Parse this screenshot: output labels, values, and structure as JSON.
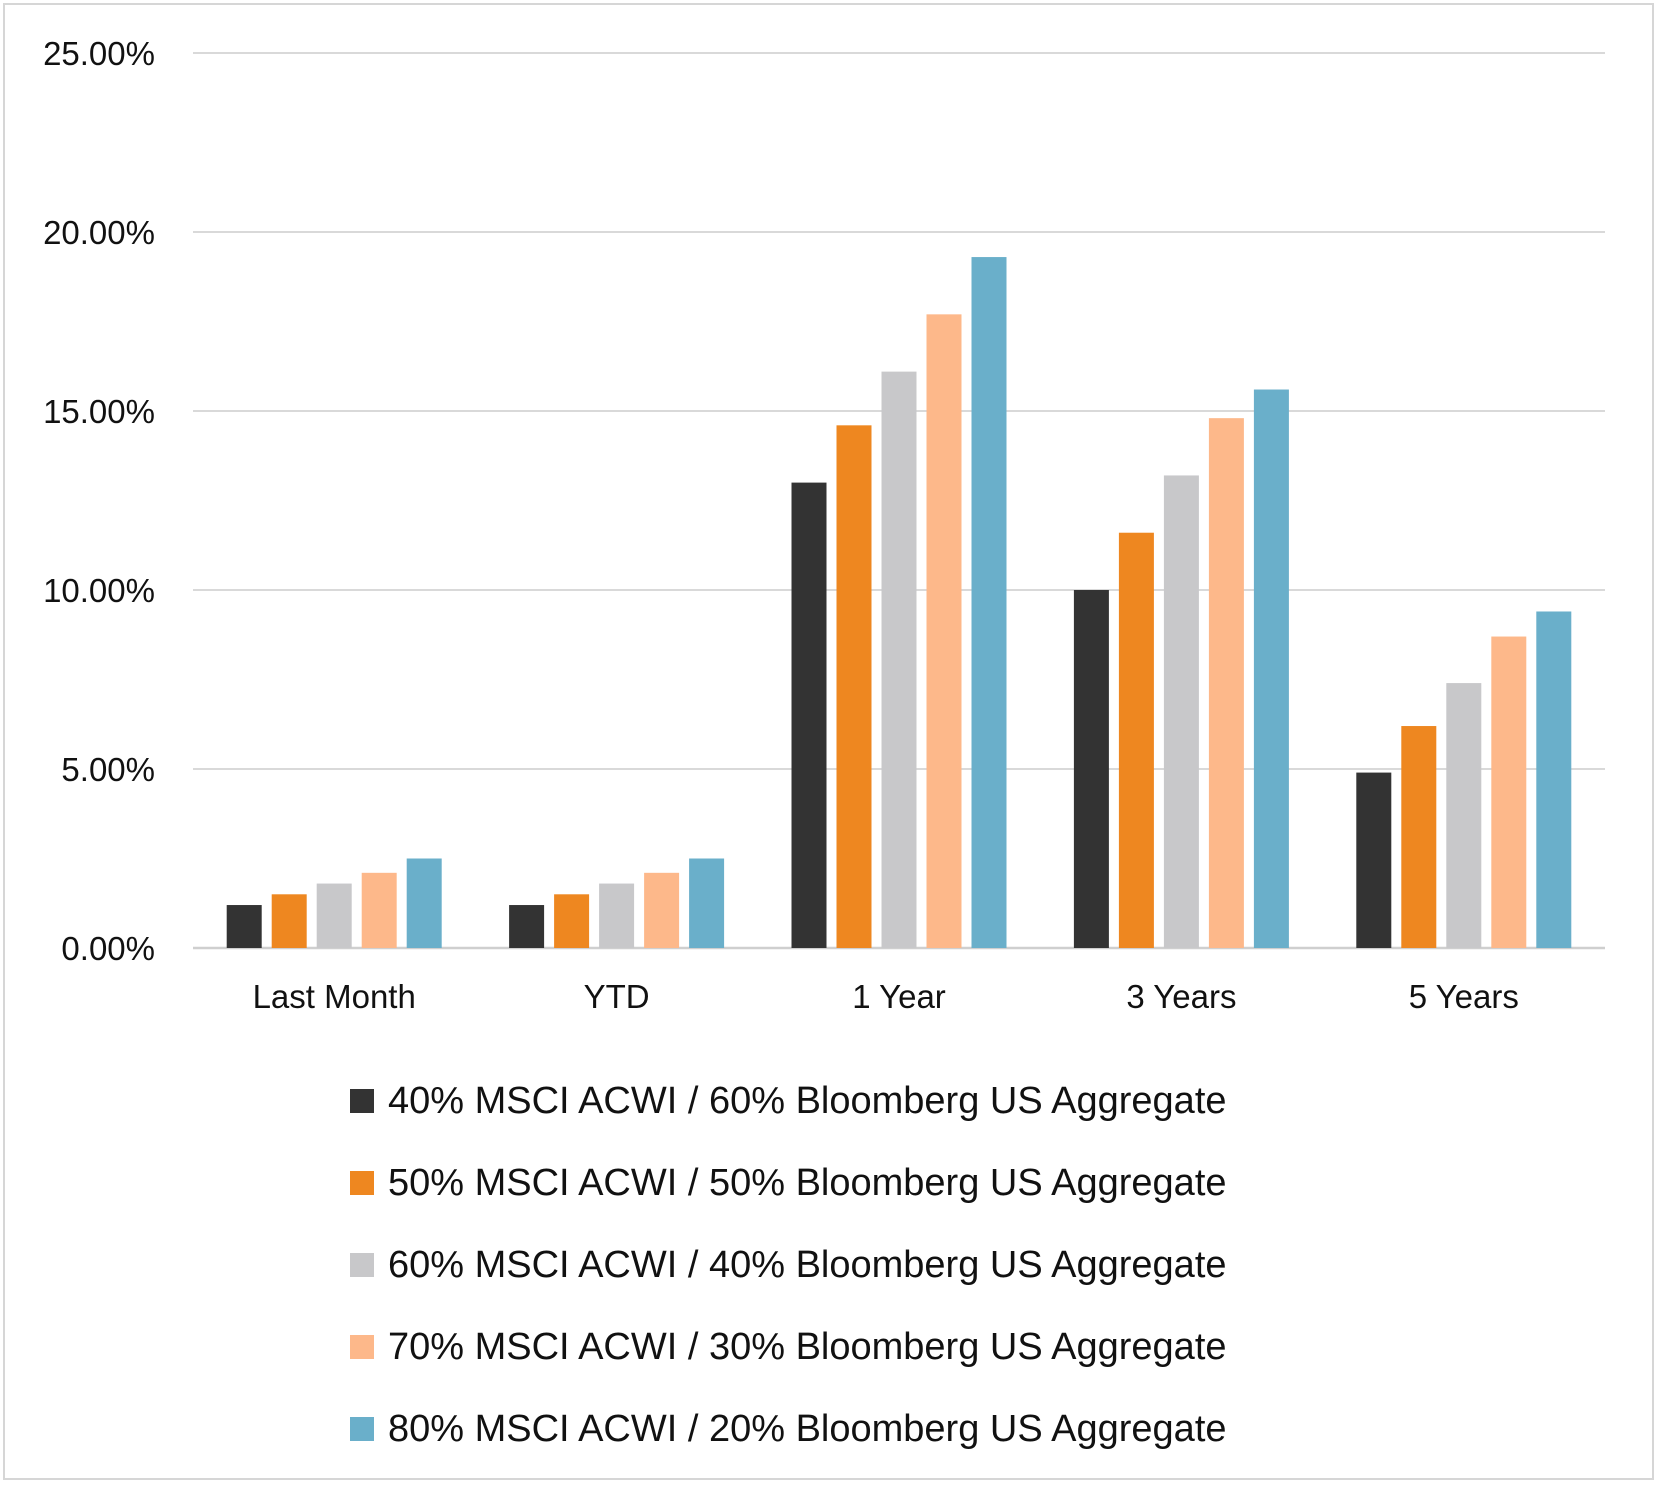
{
  "chart_data": {
    "type": "bar",
    "categories": [
      "Last Month",
      "YTD",
      "1 Year",
      "3 Years",
      "5 Years"
    ],
    "series": [
      {
        "name": "40% MSCI ACWI / 60% Bloomberg US Aggregate",
        "color": "#333333",
        "values": [
          1.2,
          1.2,
          13.0,
          10.0,
          4.9
        ]
      },
      {
        "name": "50% MSCI ACWI / 50% Bloomberg US Aggregate",
        "color": "#ee8720",
        "values": [
          1.5,
          1.5,
          14.6,
          11.6,
          6.2
        ]
      },
      {
        "name": "60% MSCI ACWI / 40% Bloomberg US Aggregate",
        "color": "#c8c8ca",
        "values": [
          1.8,
          1.8,
          16.1,
          13.2,
          7.4
        ]
      },
      {
        "name": "70% MSCI ACWI / 30% Bloomberg US Aggregate",
        "color": "#fdb88a",
        "values": [
          2.1,
          2.1,
          17.7,
          14.8,
          8.7
        ]
      },
      {
        "name": "80% MSCI ACWI / 20% Bloomberg US Aggregate",
        "color": "#6aafca",
        "values": [
          2.5,
          2.5,
          19.3,
          15.6,
          9.4
        ]
      }
    ],
    "yticks": [
      "0.00%",
      "5.00%",
      "10.00%",
      "15.00%",
      "20.00%",
      "25.00%"
    ],
    "ylim": [
      0,
      25
    ],
    "grid": true,
    "legend_position": "bottom"
  }
}
